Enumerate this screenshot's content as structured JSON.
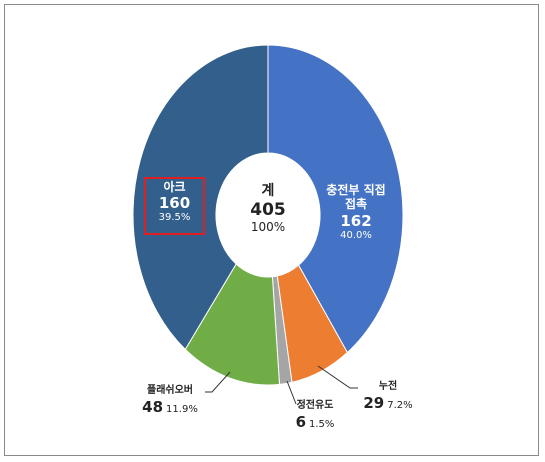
{
  "chart_data": {
    "type": "donut",
    "categories": [
      "충전부 직접접촉",
      "누전",
      "정전유도",
      "플래쉬오버",
      "아크"
    ],
    "values": [
      162,
      29,
      6,
      48,
      160
    ],
    "percent_labels": [
      "40.0%",
      "7.2%",
      "1.5%",
      "11.9%",
      "39.5%"
    ],
    "colors": [
      "#4472c4",
      "#ed7d31",
      "#a5a5a5",
      "#70ad47",
      "#335f8c"
    ],
    "center": {
      "label": "계",
      "value": 405,
      "percent_label": "100%"
    }
  }
}
